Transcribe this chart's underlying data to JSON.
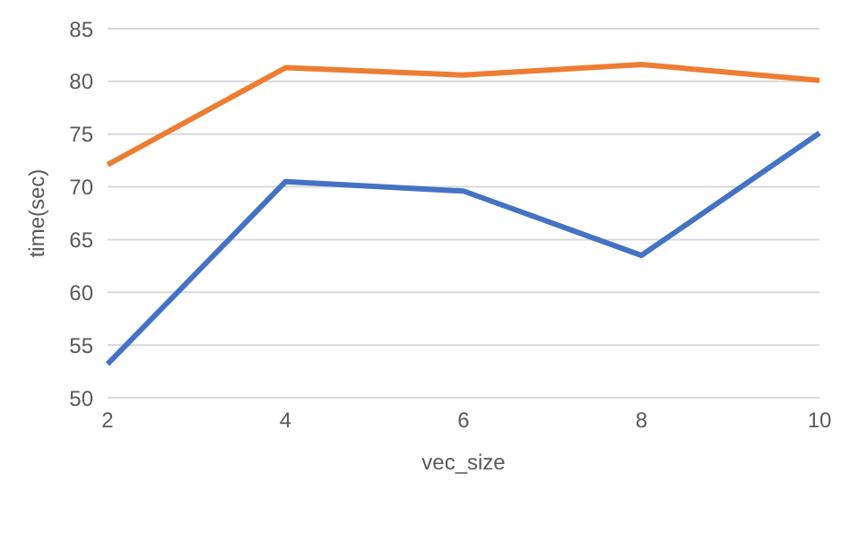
{
  "chart_data": {
    "type": "line",
    "xlabel": "vec_size",
    "ylabel": "time(sec)",
    "categories": [
      "2",
      "4",
      "6",
      "8",
      "10"
    ],
    "series": [
      {
        "color": "#ed7d31",
        "values": [
          72.1,
          81.3,
          80.6,
          81.6,
          80.1
        ]
      },
      {
        "color": "#4472c4",
        "values": [
          53.2,
          70.5,
          69.6,
          63.5,
          75.1
        ]
      }
    ],
    "ylim": [
      50,
      85
    ],
    "yticks": [
      50,
      55,
      60,
      65,
      70,
      75,
      80,
      85
    ],
    "grid": "y",
    "legend": false,
    "marker": "none",
    "line_style": "solid"
  }
}
